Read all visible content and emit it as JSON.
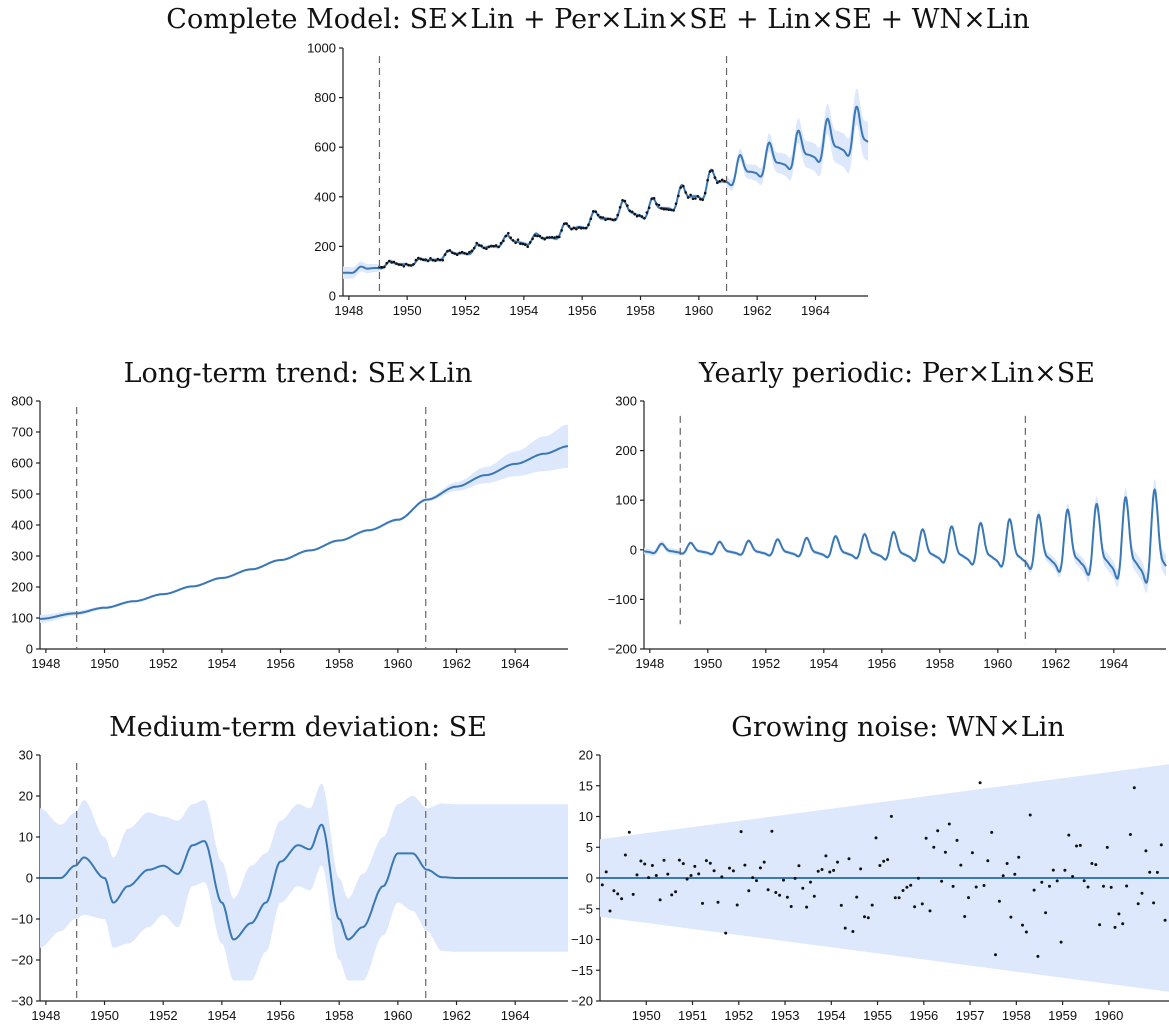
{
  "chart_data": [
    {
      "id": "complete",
      "type": "line",
      "title": "Complete Model: SE×Lin + Per×Lin×SE + Lin×SE + WN×Lin",
      "xlim": [
        1947.8,
        1965.8
      ],
      "ylim": [
        0,
        1000
      ],
      "xticks": [
        1948,
        1950,
        1952,
        1954,
        1956,
        1958,
        1960,
        1962,
        1964
      ],
      "yticks": [
        0,
        200,
        400,
        600,
        800,
        1000
      ],
      "vlines": [
        1949.05,
        1960.95
      ],
      "grid": false,
      "series_color": "#3a78b5",
      "band_color": "#dde8fc",
      "observed": true
    },
    {
      "id": "trend",
      "type": "line",
      "title": "Long-term trend: SE×Lin",
      "xlim": [
        1947.8,
        1965.8
      ],
      "ylim": [
        0,
        800
      ],
      "xticks": [
        1948,
        1950,
        1952,
        1954,
        1956,
        1958,
        1960,
        1962,
        1964
      ],
      "yticks": [
        0,
        100,
        200,
        300,
        400,
        500,
        600,
        700,
        800
      ],
      "vlines": [
        1949.05,
        1960.95
      ],
      "x": [
        1947.8,
        1949,
        1950,
        1951,
        1952,
        1953,
        1954,
        1955,
        1956,
        1957,
        1958,
        1959,
        1960,
        1961,
        1962,
        1963,
        1964,
        1965,
        1965.8
      ],
      "mean": [
        97,
        115,
        133,
        154,
        177,
        202,
        229,
        257,
        287,
        318,
        350,
        383,
        417,
        482,
        524,
        561,
        597,
        630,
        654
      ],
      "band_halfwidth": [
        13,
        8,
        5,
        4,
        4,
        4,
        4,
        4,
        4,
        4,
        4,
        4,
        5,
        6,
        14,
        26,
        40,
        56,
        70
      ],
      "grid": false
    },
    {
      "id": "periodic",
      "type": "line",
      "title": "Yearly periodic: Per×Lin×SE",
      "xlim": [
        1947.8,
        1965.8
      ],
      "ylim": [
        -200,
        300
      ],
      "xticks": [
        1948,
        1950,
        1952,
        1954,
        1956,
        1958,
        1960,
        1962,
        1964
      ],
      "yticks": [
        -200,
        -100,
        0,
        100,
        200,
        300
      ],
      "vlines": [
        1949.05,
        1960.95
      ],
      "grid": false
    },
    {
      "id": "medium",
      "type": "line",
      "title": "Medium-term deviation: SE",
      "xlim": [
        1947.8,
        1965.8
      ],
      "ylim": [
        -30,
        30
      ],
      "xticks": [
        1948,
        1950,
        1952,
        1954,
        1956,
        1958,
        1960,
        1962,
        1964
      ],
      "yticks": [
        -30,
        -20,
        -10,
        0,
        10,
        20,
        30
      ],
      "vlines": [
        1949.05,
        1960.95
      ],
      "x": [
        1947.8,
        1948.5,
        1949,
        1949.3,
        1950,
        1950.3,
        1950.8,
        1951.5,
        1952,
        1952.5,
        1953,
        1953.4,
        1954,
        1954.4,
        1955,
        1955.5,
        1956,
        1956.6,
        1957,
        1957.4,
        1958,
        1958.3,
        1958.8,
        1959.5,
        1960,
        1960.5,
        1961,
        1961.5,
        1962,
        1965.8
      ],
      "mean": [
        0,
        0,
        3,
        5,
        0,
        -6,
        -2,
        2,
        3,
        1,
        8,
        9,
        -6,
        -15,
        -11,
        -6,
        4,
        8,
        7,
        13,
        -10,
        -15,
        -12,
        -2,
        6,
        6,
        2,
        0.2,
        0,
        0
      ],
      "band_halfwidth": [
        17,
        13,
        13,
        14,
        10,
        11,
        14,
        14,
        12,
        13,
        10,
        10,
        10,
        10,
        14,
        12,
        10,
        10,
        10,
        10,
        10,
        10,
        13,
        12,
        12,
        14,
        15,
        18,
        18,
        18
      ],
      "grid": false
    },
    {
      "id": "noise",
      "type": "scatter",
      "title": "Growing noise: WN×Lin",
      "xlim": [
        1949,
        1961.3
      ],
      "ylim": [
        -20,
        20
      ],
      "xticks": [
        1950,
        1951,
        1952,
        1953,
        1954,
        1955,
        1956,
        1957,
        1958,
        1959,
        1960
      ],
      "yticks": [
        -20,
        -15,
        -10,
        -5,
        0,
        5,
        10,
        15,
        20
      ],
      "band_start": 6.3,
      "band_end": 18.5,
      "grid": false
    }
  ]
}
